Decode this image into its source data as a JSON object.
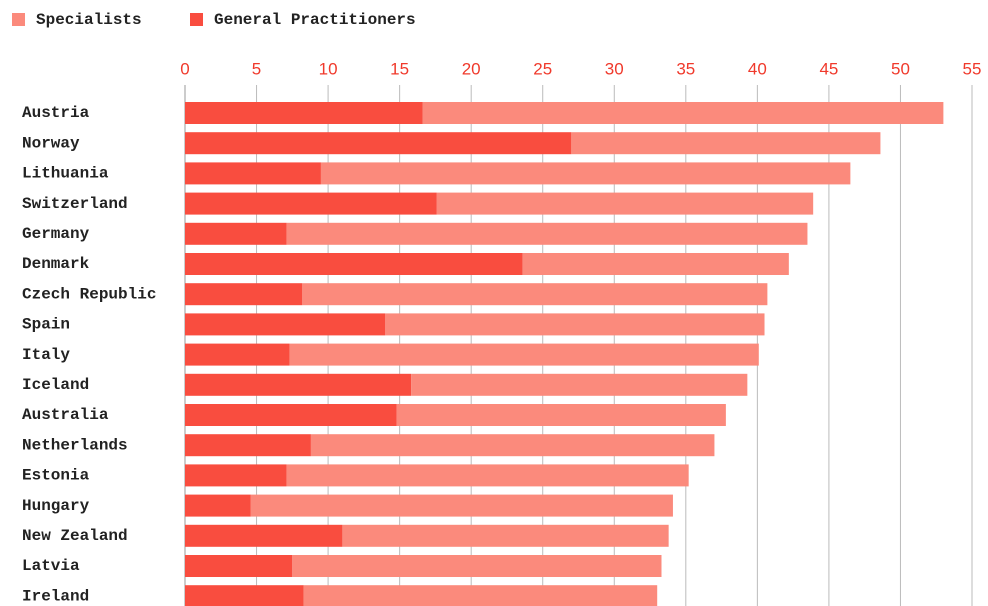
{
  "chart_data": {
    "type": "stacked-barh",
    "categories": [
      "Austria",
      "Norway",
      "Lithuania",
      "Switzerland",
      "Germany",
      "Denmark",
      "Czech Republic",
      "Spain",
      "Italy",
      "Iceland",
      "Australia",
      "Netherlands",
      "Estonia",
      "Hungary",
      "New Zealand",
      "Latvia",
      "Ireland"
    ],
    "series": [
      {
        "name": "Specialists",
        "color": "#fb8a7c",
        "values": [
          36.4,
          21.6,
          37.0,
          26.3,
          36.4,
          18.6,
          32.5,
          26.5,
          32.8,
          23.5,
          23.0,
          28.2,
          28.1,
          29.5,
          22.8,
          25.8,
          24.7
        ]
      },
      {
        "name": "General Practitioners",
        "color": "#f94d3f",
        "values": [
          16.6,
          27.0,
          9.5,
          17.6,
          7.1,
          23.6,
          8.2,
          14.0,
          7.3,
          15.8,
          14.8,
          8.8,
          7.1,
          4.6,
          11.0,
          7.5,
          8.3
        ]
      }
    ],
    "xlim": [
      0,
      55
    ],
    "xticks": [
      0,
      5,
      10,
      15,
      20,
      25,
      30,
      35,
      40,
      45,
      50,
      55
    ],
    "grid": true
  }
}
